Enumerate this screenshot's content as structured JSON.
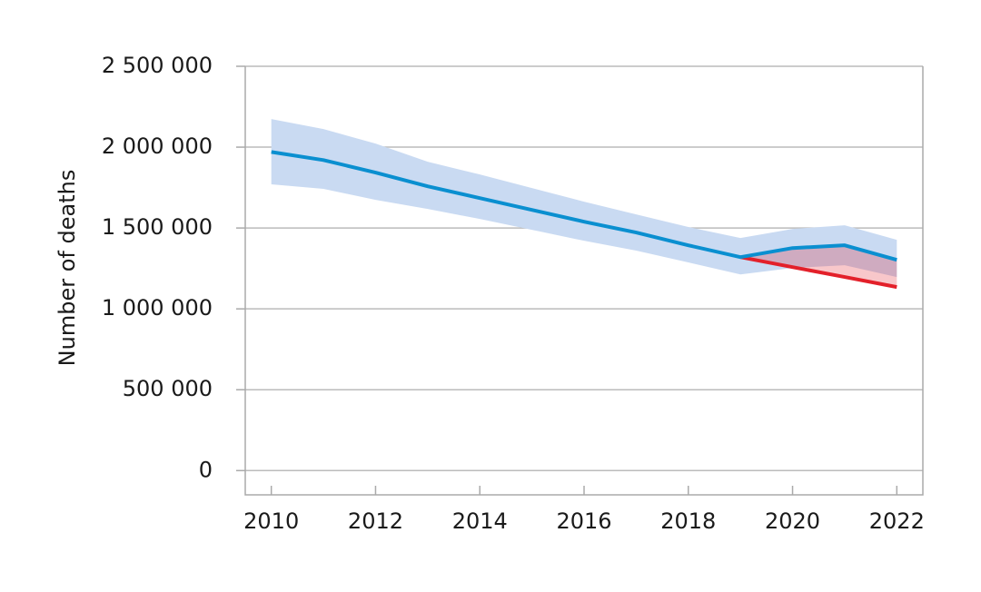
{
  "chart_data": {
    "type": "line",
    "y_label": "Number of deaths",
    "x": [
      2010,
      2011,
      2012,
      2013,
      2014,
      2015,
      2016,
      2017,
      2018,
      2019,
      2020,
      2021,
      2022
    ],
    "series": [
      {
        "color": "#0a8fd0",
        "band_color": "#c9daf2",
        "values": [
          1970000,
          1920000,
          1843000,
          1758000,
          1685000,
          1612000,
          1539000,
          1472000,
          1393000,
          1320000,
          1376000,
          1393000,
          1303000
        ],
        "lower": [
          1770000,
          1742000,
          1674000,
          1618000,
          1556000,
          1489000,
          1421000,
          1360000,
          1287000,
          1213000,
          1253000,
          1270000,
          1197000
        ],
        "upper": [
          2174000,
          2112000,
          2022000,
          1910000,
          1831000,
          1747000,
          1663000,
          1584000,
          1506000,
          1438000,
          1494000,
          1517000,
          1427000
        ]
      },
      {
        "color": "#e3202a",
        "values": [
          null,
          null,
          null,
          null,
          null,
          null,
          null,
          null,
          null,
          1320000,
          1258000,
          1197000,
          1135000
        ]
      }
    ],
    "xlim": [
      2009.5,
      2022.5
    ],
    "ylim": [
      -150000,
      2500000
    ],
    "xticks": [
      2010,
      2012,
      2014,
      2016,
      2018,
      2020,
      2022
    ],
    "yticks": [
      0,
      {
        "value": 500000,
        "label": "500 000"
      },
      {
        "value": 1000000,
        "label": "1 000 000"
      },
      {
        "value": 1500000,
        "label": "1 500 000"
      },
      {
        "value": 2000000,
        "label": "2 000 000"
      },
      {
        "value": 2500000,
        "label": "2 500 000"
      }
    ],
    "grid": true
  }
}
